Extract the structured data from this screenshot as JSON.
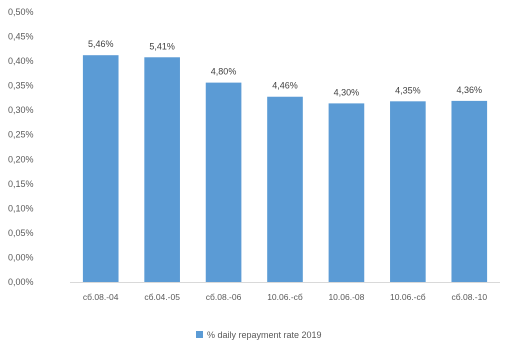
{
  "chart_data": {
    "type": "bar",
    "categories": [
      "сб.08.-04",
      "сб.04.-05",
      "сб.08.-06",
      "10.06.-сб",
      "10.06.-08",
      "10.06.-сб",
      "сб.08.-10"
    ],
    "series": [
      {
        "name": "% daily repayment rate 2019",
        "values": [
          0.0546,
          0.0541,
          0.048,
          0.0446,
          0.043,
          0.0435,
          0.0436
        ]
      }
    ],
    "data_labels": [
      "5,46%",
      "5,41%",
      "4,80%",
      "4,46%",
      "4,30%",
      "4,35%",
      "4,36%"
    ],
    "y_ticks": [
      "0,00%",
      "0,00%",
      "0,05%",
      "0,10%",
      "0,15%",
      "0,20%",
      "0,25%",
      "0,30%",
      "0,35%",
      "0,40%",
      "0,45%",
      "0,50%"
    ],
    "ylim": [
      0,
      0.065
    ],
    "grid": false,
    "legend_position": "bottom",
    "colors": {
      "bar": "#5b9bd5",
      "axis": "#d9d9d9",
      "text": "#595959"
    }
  }
}
